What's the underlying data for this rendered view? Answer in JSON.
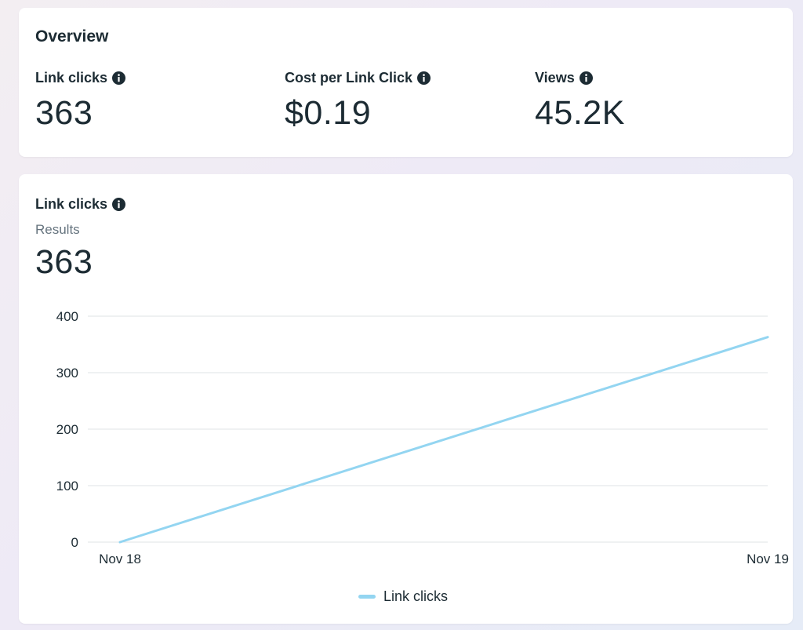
{
  "overview": {
    "title": "Overview",
    "metrics": [
      {
        "label": "Link clicks",
        "value": "363"
      },
      {
        "label": "Cost per Link Click",
        "value": "$0.19"
      },
      {
        "label": "Views",
        "value": "45.2K"
      }
    ]
  },
  "chart_card": {
    "title": "Link clicks",
    "subtitle": "Results",
    "value": "363"
  },
  "colors": {
    "line": "#93d5f1",
    "grid": "#dfe3e6",
    "text": "#1c2b33",
    "icon": "#1c2b33"
  },
  "icons": {
    "info": "info-icon"
  },
  "chart_data": {
    "type": "line",
    "x": [
      "Nov 18",
      "Nov 19"
    ],
    "series": [
      {
        "name": "Link clicks",
        "values": [
          0,
          363
        ]
      }
    ],
    "yticks": [
      0,
      100,
      200,
      300,
      400
    ],
    "ylim": [
      0,
      400
    ],
    "grid": true,
    "legend": "bottom-center"
  }
}
